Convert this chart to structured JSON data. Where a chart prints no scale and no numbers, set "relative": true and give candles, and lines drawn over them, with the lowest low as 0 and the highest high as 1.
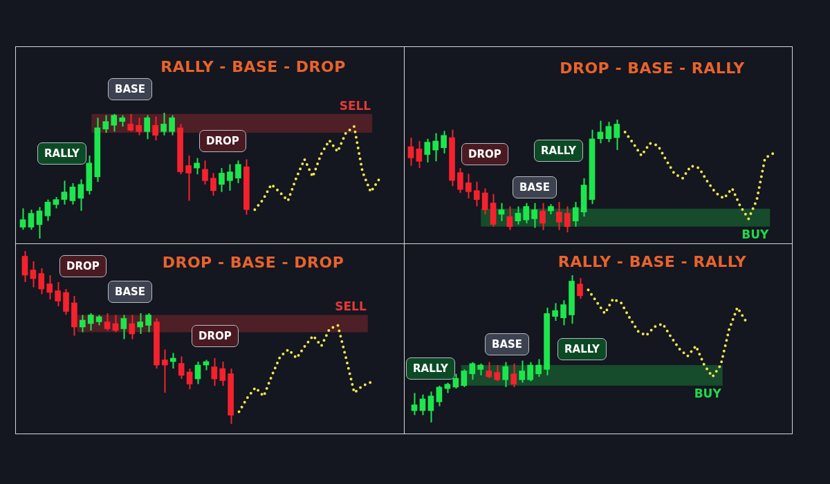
{
  "chart_data": [
    {
      "type": "candlestick",
      "title": "RALLY - BASE - DROP",
      "relative": true,
      "tick_labels": false,
      "categories": [
        null,
        null,
        null,
        null,
        null,
        null,
        null,
        null,
        null,
        null,
        null,
        null,
        null,
        null,
        null,
        null,
        null,
        null,
        null,
        null,
        null,
        null,
        null,
        null,
        null,
        null,
        null,
        null,
        null,
        null,
        null,
        null,
        null,
        null,
        null,
        null,
        null,
        null,
        null,
        null,
        null,
        null,
        null,
        null
      ],
      "ohlc": [
        [
          0.09,
          0.24,
          0.07,
          0.15
        ],
        [
          0.09,
          0.23,
          0.07,
          0.2
        ],
        [
          0.11,
          0.25,
          0,
          0.22
        ],
        [
          0.18,
          0.31,
          0.14,
          0.29
        ],
        [
          0.27,
          0.33,
          0.24,
          0.31
        ],
        [
          0.31,
          0.46,
          0.27,
          0.37
        ],
        [
          0.3,
          0.44,
          0.27,
          0.41
        ],
        [
          0.32,
          0.47,
          0.22,
          0.43
        ],
        [
          0.38,
          0.66,
          0.35,
          0.6
        ],
        [
          0.49,
          0.96,
          0.45,
          0.88
        ],
        [
          0.87,
          0.98,
          0.84,
          0.93
        ],
        [
          0.9,
          0.99,
          0.85,
          0.98
        ],
        [
          0.93,
          0.98,
          0.89,
          0.96
        ],
        [
          0.91,
          0.99,
          0.85,
          0.86
        ],
        [
          0.9,
          0.96,
          0.82,
          0.85
        ],
        [
          0.85,
          0.98,
          0.79,
          0.96
        ],
        [
          0.9,
          0.97,
          0.78,
          0.82
        ],
        [
          0.85,
          1,
          0.82,
          0.91
        ],
        [
          0.85,
          0.98,
          0.82,
          0.96
        ],
        [
          0.88,
          0.91,
          0.51,
          0.53
        ],
        [
          0.58,
          0.66,
          0.3,
          0.52
        ],
        [
          0.56,
          0.64,
          0.51,
          0.6
        ],
        [
          0.55,
          0.62,
          0.43,
          0.46
        ],
        [
          0.48,
          0.52,
          0.34,
          0.38
        ],
        [
          0.43,
          0.56,
          0.37,
          0.52
        ],
        [
          0.46,
          0.59,
          0.38,
          0.53
        ],
        [
          0.48,
          0.62,
          0.44,
          0.59
        ],
        [
          0.57,
          0.63,
          0.19,
          0.23
        ],
        null,
        null,
        null,
        null,
        null,
        null,
        null,
        null,
        null,
        null,
        null,
        null,
        null,
        null,
        null,
        null
      ],
      "colors": [
        "#1de64c",
        "#1de64c",
        "#1de64c",
        "#1de64c",
        "#1de64c",
        "#1de64c",
        "#1de64c",
        "#1de64c",
        "#1de64c",
        "#1de64c",
        "#1de64c",
        "#1de64c",
        "#1de64c",
        "#f5222d",
        "#f5222d",
        "#1de64c",
        "#f5222d",
        "#1de64c",
        "#1de64c",
        "#f5222d",
        "#f5222d",
        "#1de64c",
        "#f5222d",
        "#f5222d",
        "#1de64c",
        "#1de64c",
        "#1de64c",
        "#f5222d",
        null,
        null,
        null,
        null,
        null,
        null,
        null,
        null,
        null,
        null,
        null,
        null,
        null,
        null,
        null,
        null
      ],
      "series": [
        {
          "type": "line",
          "color": "#f2e64a",
          "line_style": "dotted",
          "values": [
            null,
            null,
            null,
            null,
            null,
            null,
            null,
            null,
            null,
            null,
            null,
            null,
            null,
            null,
            null,
            null,
            null,
            null,
            null,
            null,
            null,
            null,
            null,
            null,
            null,
            null,
            null,
            null,
            0.23,
            0.31,
            0.43,
            0.37,
            0.3,
            0.48,
            0.63,
            0.49,
            0.67,
            0.78,
            0.69,
            0.84,
            0.89,
            0.53,
            0.37,
            0.47
          ]
        }
      ],
      "bands": [
        {
          "axis": "y",
          "from": 0.84,
          "to": 0.99,
          "label": "SELL",
          "color": "#e53935"
        }
      ],
      "annotations": [
        "RALLY",
        "BASE",
        "DROP"
      ]
    },
    {
      "type": "candlestick",
      "title": "DROP - BASE - RALLY",
      "relative": true,
      "tick_labels": false,
      "categories": [
        null,
        null,
        null,
        null,
        null,
        null,
        null,
        null,
        null,
        null,
        null,
        null,
        null,
        null,
        null,
        null,
        null,
        null,
        null,
        null,
        null,
        null,
        null,
        null,
        null,
        null,
        null,
        null,
        null,
        null,
        null,
        null,
        null,
        null,
        null,
        null,
        null,
        null,
        null,
        null,
        null,
        null,
        null,
        null,
        null
      ],
      "ohlc": [
        [
          0.76,
          0.84,
          0.59,
          0.66
        ],
        [
          0.74,
          0.81,
          0.57,
          0.63
        ],
        [
          0.69,
          0.83,
          0.62,
          0.8
        ],
        [
          0.73,
          0.88,
          0.63,
          0.81
        ],
        [
          0.75,
          0.9,
          0.7,
          0.86
        ],
        [
          0.84,
          0.91,
          0.41,
          0.46
        ],
        [
          0.53,
          0.57,
          0.35,
          0.38
        ],
        [
          0.44,
          0.52,
          0.3,
          0.36
        ],
        [
          0.37,
          0.45,
          0.23,
          0.29
        ],
        [
          0.35,
          0.39,
          0.16,
          0.2
        ],
        [
          0.26,
          0.34,
          0.05,
          0.07
        ],
        [
          0.16,
          0.26,
          0.1,
          0.2
        ],
        [
          0.14,
          0.23,
          0.02,
          0.05
        ],
        [
          0.1,
          0.23,
          0.07,
          0.17
        ],
        [
          0.11,
          0.26,
          0.08,
          0.23
        ],
        [
          0.12,
          0.26,
          0.04,
          0.2
        ],
        [
          0.19,
          0.26,
          0.02,
          0.08
        ],
        [
          0.19,
          0.25,
          0.16,
          0.23
        ],
        [
          0.18,
          0.27,
          0.02,
          0.09
        ],
        [
          0.17,
          0.23,
          0,
          0.05
        ],
        [
          0.1,
          0.27,
          0.05,
          0.22
        ],
        [
          0.18,
          0.48,
          0.14,
          0.42
        ],
        [
          0.29,
          0.91,
          0.25,
          0.83
        ],
        [
          0.83,
          0.99,
          0.79,
          0.89
        ],
        [
          0.83,
          0.98,
          0.8,
          0.94
        ],
        [
          0.84,
          1,
          0.73,
          0.96
        ],
        null,
        null,
        null,
        null,
        null,
        null,
        null,
        null,
        null,
        null,
        null,
        null,
        null,
        null,
        null,
        null,
        null,
        null,
        null
      ],
      "colors": [
        "#f5222d",
        "#f5222d",
        "#1de64c",
        "#1de64c",
        "#1de64c",
        "#f5222d",
        "#f5222d",
        "#f5222d",
        "#f5222d",
        "#f5222d",
        "#f5222d",
        "#1de64c",
        "#f5222d",
        "#1de64c",
        "#1de64c",
        "#1de64c",
        "#f5222d",
        "#1de64c",
        "#f5222d",
        "#f5222d",
        "#1de64c",
        "#1de64c",
        "#1de64c",
        "#1de64c",
        "#1de64c",
        "#1de64c",
        null,
        null,
        null,
        null,
        null,
        null,
        null,
        null,
        null,
        null,
        null,
        null,
        null,
        null,
        null,
        null,
        null,
        null,
        null
      ],
      "series": [
        {
          "type": "line",
          "color": "#f2e64a",
          "line_style": "dotted",
          "values": [
            null,
            null,
            null,
            null,
            null,
            null,
            null,
            null,
            null,
            null,
            null,
            null,
            null,
            null,
            null,
            null,
            null,
            null,
            null,
            null,
            null,
            null,
            null,
            null,
            null,
            null,
            0.89,
            0.79,
            0.68,
            0.79,
            0.77,
            0.64,
            0.52,
            0.48,
            0.59,
            0.57,
            0.45,
            0.35,
            0.3,
            0.39,
            0.23,
            0.12,
            0.29,
            0.66,
            0.7
          ]
        }
      ],
      "bands": [
        {
          "axis": "y",
          "from": 0.05,
          "to": 0.21,
          "label": "BUY",
          "color": "#1ed94a"
        }
      ],
      "annotations": [
        "DROP",
        "BASE",
        "RALLY"
      ]
    },
    {
      "type": "candlestick",
      "title": "DROP - BASE - DROP",
      "relative": true,
      "tick_labels": false,
      "categories": [
        null,
        null,
        null,
        null,
        null,
        null,
        null,
        null,
        null,
        null,
        null,
        null,
        null,
        null,
        null,
        null,
        null,
        null,
        null,
        null,
        null,
        null,
        null,
        null,
        null,
        null,
        null,
        null,
        null,
        null,
        null,
        null,
        null,
        null,
        null,
        null,
        null,
        null,
        null,
        null,
        null,
        null,
        null
      ],
      "ohlc": [
        [
          0.97,
          1,
          0.82,
          0.86
        ],
        [
          0.89,
          0.94,
          0.79,
          0.84
        ],
        [
          0.87,
          0.9,
          0.75,
          0.78
        ],
        [
          0.81,
          0.86,
          0.72,
          0.76
        ],
        [
          0.77,
          0.82,
          0.68,
          0.71
        ],
        [
          0.76,
          0.78,
          0.63,
          0.65
        ],
        [
          0.7,
          0.74,
          0.51,
          0.56
        ],
        [
          0.56,
          0.63,
          0.53,
          0.6
        ],
        [
          0.58,
          0.64,
          0.54,
          0.63
        ],
        [
          0.59,
          0.63,
          0.57,
          0.62
        ],
        [
          0.59,
          0.64,
          0.54,
          0.55
        ],
        [
          0.58,
          0.63,
          0.53,
          0.54
        ],
        [
          0.55,
          0.63,
          0.49,
          0.61
        ],
        [
          0.58,
          0.63,
          0.49,
          0.52
        ],
        [
          0.56,
          0.64,
          0.52,
          0.59
        ],
        [
          0.57,
          0.64,
          0.53,
          0.63
        ],
        [
          0.59,
          0.61,
          0.32,
          0.34
        ],
        [
          0.37,
          0.43,
          0.18,
          0.34
        ],
        [
          0.36,
          0.41,
          0.32,
          0.38
        ],
        [
          0.35,
          0.39,
          0.26,
          0.28
        ],
        [
          0.3,
          0.32,
          0.2,
          0.23
        ],
        [
          0.26,
          0.36,
          0.23,
          0.34
        ],
        [
          0.34,
          0.37,
          0.31,
          0.36
        ],
        [
          0.33,
          0.38,
          0.22,
          0.26
        ],
        [
          0.32,
          0.36,
          0.22,
          0.25
        ],
        [
          0.29,
          0.32,
          0,
          0.05
        ],
        null,
        null,
        null,
        null,
        null,
        null,
        null,
        null,
        null,
        null,
        null,
        null,
        null,
        null,
        null,
        null,
        null
      ],
      "colors": [
        "#f5222d",
        "#f5222d",
        "#f5222d",
        "#f5222d",
        "#f5222d",
        "#f5222d",
        "#f5222d",
        "#1de64c",
        "#1de64c",
        "#1de64c",
        "#f5222d",
        "#f5222d",
        "#1de64c",
        "#f5222d",
        "#1de64c",
        "#1de64c",
        "#f5222d",
        "#f5222d",
        "#1de64c",
        "#f5222d",
        "#f5222d",
        "#1de64c",
        "#1de64c",
        "#f5222d",
        "#f5222d",
        "#f5222d",
        null,
        null,
        null,
        null,
        null,
        null,
        null,
        null,
        null,
        null,
        null,
        null,
        null,
        null,
        null,
        null,
        null
      ],
      "series": [
        {
          "type": "line",
          "color": "#f2e64a",
          "line_style": "dotted",
          "values": [
            null,
            null,
            null,
            null,
            null,
            null,
            null,
            null,
            null,
            null,
            null,
            null,
            null,
            null,
            null,
            null,
            null,
            null,
            null,
            null,
            null,
            null,
            null,
            null,
            null,
            null,
            0.07,
            0.15,
            0.21,
            0.16,
            0.28,
            0.39,
            0.43,
            0.38,
            0.45,
            0.51,
            0.45,
            0.55,
            0.57,
            0.38,
            0.18,
            0.22,
            0.24
          ]
        }
      ],
      "bands": [
        {
          "axis": "y",
          "from": 0.53,
          "to": 0.63,
          "label": "SELL",
          "color": "#e53935"
        }
      ],
      "annotations": [
        "DROP",
        "BASE",
        "DROP"
      ]
    },
    {
      "type": "candlestick",
      "title": "RALLY - BASE - RALLY",
      "relative": true,
      "tick_labels": false,
      "categories": [
        null,
        null,
        null,
        null,
        null,
        null,
        null,
        null,
        null,
        null,
        null,
        null,
        null,
        null,
        null,
        null,
        null,
        null,
        null,
        null,
        null,
        null,
        null,
        null,
        null,
        null,
        null,
        null,
        null,
        null,
        null,
        null,
        null,
        null,
        null,
        null,
        null,
        null,
        null,
        null,
        null
      ],
      "ohlc": [
        [
          0.08,
          0.2,
          0.05,
          0.12
        ],
        [
          0.08,
          0.19,
          0.05,
          0.16
        ],
        [
          0.08,
          0.21,
          0,
          0.18
        ],
        [
          0.14,
          0.25,
          0.11,
          0.24
        ],
        [
          0.23,
          0.27,
          0.2,
          0.26
        ],
        [
          0.24,
          0.33,
          0.23,
          0.3
        ],
        [
          0.25,
          0.36,
          0.24,
          0.35
        ],
        [
          0.33,
          0.41,
          0.29,
          0.4
        ],
        [
          0.36,
          0.4,
          0.32,
          0.39
        ],
        [
          0.35,
          0.41,
          0.3,
          0.31
        ],
        [
          0.34,
          0.39,
          0.28,
          0.29
        ],
        [
          0.29,
          0.41,
          0.24,
          0.38
        ],
        [
          0.33,
          0.4,
          0.24,
          0.26
        ],
        [
          0.29,
          0.42,
          0.27,
          0.35
        ],
        [
          0.29,
          0.41,
          0.28,
          0.39
        ],
        [
          0.33,
          0.43,
          0.31,
          0.39
        ],
        [
          0.36,
          0.78,
          0.32,
          0.74
        ],
        [
          0.72,
          0.81,
          0.69,
          0.76
        ],
        [
          0.71,
          0.83,
          0.66,
          0.8
        ],
        [
          0.73,
          1,
          0.67,
          0.96
        ],
        [
          0.94,
          0.98,
          0.84,
          0.86
        ],
        null,
        null,
        null,
        null,
        null,
        null,
        null,
        null,
        null,
        null,
        null,
        null,
        null,
        null,
        null,
        null,
        null,
        null,
        null,
        null
      ],
      "colors": [
        "#1de64c",
        "#1de64c",
        "#1de64c",
        "#1de64c",
        "#1de64c",
        "#1de64c",
        "#1de64c",
        "#1de64c",
        "#1de64c",
        "#f5222d",
        "#f5222d",
        "#1de64c",
        "#f5222d",
        "#1de64c",
        "#1de64c",
        "#1de64c",
        "#1de64c",
        "#1de64c",
        "#1de64c",
        "#1de64c",
        "#f5222d",
        null,
        null,
        null,
        null,
        null,
        null,
        null,
        null,
        null,
        null,
        null,
        null,
        null,
        null,
        null,
        null,
        null,
        null,
        null,
        null
      ],
      "series": [
        {
          "type": "line",
          "color": "#f2e64a",
          "line_style": "dotted",
          "values": [
            null,
            null,
            null,
            null,
            null,
            null,
            null,
            null,
            null,
            null,
            null,
            null,
            null,
            null,
            null,
            null,
            null,
            null,
            null,
            null,
            null,
            0.9,
            0.82,
            0.74,
            0.84,
            0.81,
            0.71,
            0.62,
            0.59,
            0.65,
            0.67,
            0.58,
            0.5,
            0.45,
            0.52,
            0.39,
            0.31,
            0.39,
            0.63,
            0.78,
            0.69
          ]
        }
      ],
      "bands": [
        {
          "axis": "y",
          "from": 0.25,
          "to": 0.39,
          "label": "BUY",
          "color": "#1ed94a"
        }
      ],
      "annotations": [
        "RALLY",
        "BASE",
        "RALLY"
      ]
    }
  ]
}
